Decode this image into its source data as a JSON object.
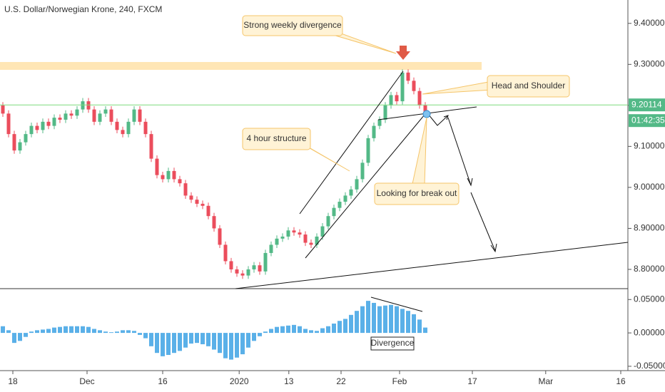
{
  "chart_data": [
    {
      "type": "candlestick",
      "title": "U.S. Dollar/Norwegian Krone, 240, FXCM",
      "open": [
        9.2,
        9.18,
        9.13,
        9.09,
        9.11,
        9.13,
        9.15,
        9.14,
        9.16,
        9.15,
        9.17,
        9.165,
        9.18,
        9.175,
        9.19,
        9.21,
        9.19,
        9.16,
        9.18,
        9.19,
        9.16,
        9.14,
        9.13,
        9.16,
        9.19,
        9.16,
        9.13,
        9.07,
        9.03,
        9.02,
        9.04,
        9.02,
        9.01,
        8.98,
        8.97,
        8.96,
        8.955,
        8.93,
        8.9,
        8.86,
        8.82,
        8.8,
        8.79,
        8.785,
        8.8,
        8.81,
        8.795,
        8.84,
        8.86,
        8.875,
        8.88,
        8.895,
        8.89,
        8.885,
        8.865,
        8.86,
        8.88,
        8.905,
        8.93,
        8.95,
        8.965,
        8.98,
        8.995,
        9.02,
        9.06,
        9.12,
        9.15,
        9.165,
        9.2,
        9.225,
        9.21,
        9.28,
        9.26,
        9.235,
        9.2
      ],
      "high": [
        9.208,
        9.188,
        9.138,
        9.118,
        9.138,
        9.158,
        9.158,
        9.168,
        9.168,
        9.178,
        9.178,
        9.188,
        9.188,
        9.198,
        9.218,
        9.218,
        9.198,
        9.188,
        9.198,
        9.198,
        9.168,
        9.148,
        9.168,
        9.198,
        9.198,
        9.168,
        9.138,
        9.078,
        9.038,
        9.048,
        9.048,
        9.028,
        9.018,
        8.988,
        8.978,
        8.968,
        8.963,
        8.938,
        8.908,
        8.868,
        8.828,
        8.808,
        8.798,
        8.808,
        8.818,
        8.818,
        8.848,
        8.868,
        8.883,
        8.888,
        8.903,
        8.903,
        8.898,
        8.893,
        8.873,
        8.888,
        8.913,
        8.938,
        8.958,
        8.973,
        8.988,
        9.003,
        9.028,
        9.068,
        9.128,
        9.158,
        9.173,
        9.208,
        9.233,
        9.233,
        9.288,
        9.288,
        9.268,
        9.243,
        9.208
      ],
      "low": [
        9.172,
        9.122,
        9.082,
        9.082,
        9.102,
        9.122,
        9.132,
        9.132,
        9.142,
        9.142,
        9.157,
        9.157,
        9.167,
        9.167,
        9.182,
        9.182,
        9.152,
        9.152,
        9.172,
        9.152,
        9.132,
        9.122,
        9.122,
        9.152,
        9.152,
        9.122,
        9.062,
        9.022,
        9.012,
        9.012,
        9.012,
        9.002,
        8.972,
        8.962,
        8.952,
        8.947,
        8.922,
        8.892,
        8.852,
        8.812,
        8.792,
        8.782,
        8.777,
        8.777,
        8.792,
        8.787,
        8.787,
        8.832,
        8.852,
        8.867,
        8.872,
        8.882,
        8.877,
        8.857,
        8.852,
        8.852,
        8.872,
        8.897,
        8.922,
        8.942,
        8.957,
        8.972,
        8.987,
        9.012,
        9.052,
        9.112,
        9.142,
        9.157,
        9.192,
        9.202,
        9.202,
        9.252,
        9.227,
        9.192,
        9.177
      ],
      "close": [
        9.18,
        9.13,
        9.09,
        9.11,
        9.13,
        9.15,
        9.14,
        9.16,
        9.15,
        9.17,
        9.165,
        9.18,
        9.175,
        9.19,
        9.21,
        9.19,
        9.16,
        9.18,
        9.19,
        9.16,
        9.14,
        9.13,
        9.16,
        9.19,
        9.16,
        9.13,
        9.07,
        9.03,
        9.02,
        9.04,
        9.02,
        9.01,
        8.98,
        8.97,
        8.96,
        8.955,
        8.93,
        8.9,
        8.86,
        8.82,
        8.8,
        8.79,
        8.785,
        8.8,
        8.81,
        8.795,
        8.84,
        8.86,
        8.875,
        8.88,
        8.895,
        8.89,
        8.885,
        8.865,
        8.86,
        8.88,
        8.905,
        8.93,
        8.95,
        8.965,
        8.98,
        8.995,
        9.02,
        9.06,
        9.12,
        9.15,
        9.165,
        9.2,
        9.225,
        9.21,
        9.28,
        9.26,
        9.235,
        9.2,
        9.185
      ],
      "up_color": "#53b987",
      "down_color": "#eb4d5c",
      "ylim": [
        8.753,
        9.457
      ],
      "yticks": [
        {
          "value": 8.8,
          "label": "8.80000"
        },
        {
          "value": 8.9,
          "label": "8.90000"
        },
        {
          "value": 9.0,
          "label": "9.00000"
        },
        {
          "value": 9.1,
          "label": "9.10000"
        },
        {
          "value": 9.2,
          "label": "9.20000"
        },
        {
          "value": 9.3,
          "label": "9.30000"
        },
        {
          "value": 9.4,
          "label": "9.40000"
        }
      ],
      "xlim": [
        0,
        110
      ],
      "xticks": [
        {
          "value": 2.25,
          "label": "18"
        },
        {
          "value": 15.25,
          "label": "Dec"
        },
        {
          "value": 28.5,
          "label": "16"
        },
        {
          "value": 41.9,
          "label": "2020"
        },
        {
          "value": 50.6,
          "label": "13"
        },
        {
          "value": 59.75,
          "label": "22"
        },
        {
          "value": 70,
          "label": "Feb"
        },
        {
          "value": 82.75,
          "label": "17"
        },
        {
          "value": 95.6,
          "label": "Mar"
        },
        {
          "value": 108.75,
          "label": "16"
        }
      ],
      "last_price": 9.20114,
      "countdown": "01:42:35",
      "annotations": [
        "Strong weekly divergence",
        "Head and Shoulder",
        "4 hour structure",
        "Looking for break out"
      ]
    },
    {
      "type": "bar",
      "values": [
        0.01,
        0.004,
        -0.015,
        -0.012,
        -0.006,
        0.002,
        0.004,
        0.005,
        0.006,
        0.008,
        0.009,
        0.01,
        0.01,
        0.01,
        0.01,
        0.009,
        0.006,
        0.004,
        0.002,
        0.001,
        0.002,
        0.004,
        0.004,
        0.003,
        -0.003,
        -0.008,
        -0.02,
        -0.03,
        -0.035,
        -0.033,
        -0.03,
        -0.027,
        -0.022,
        -0.016,
        -0.015,
        -0.017,
        -0.02,
        -0.025,
        -0.03,
        -0.038,
        -0.04,
        -0.037,
        -0.032,
        -0.022,
        -0.012,
        -0.005,
        0.002,
        0.006,
        0.009,
        0.01,
        0.011,
        0.012,
        0.01,
        0.006,
        0.004,
        0.003,
        0.007,
        0.01,
        0.014,
        0.018,
        0.021,
        0.027,
        0.033,
        0.04,
        0.048,
        0.045,
        0.04,
        0.041,
        0.042,
        0.04,
        0.036,
        0.033,
        0.028,
        0.02,
        0.008
      ],
      "color": "#5ab0e8",
      "ylim": [
        -0.0565,
        0.0663
      ],
      "yticks": [
        {
          "value": -0.05,
          "label": "-0.05000"
        },
        {
          "value": 0,
          "label": "0.00000"
        },
        {
          "value": 0.05,
          "label": "0.05000"
        }
      ],
      "annotation": "Divergence"
    }
  ]
}
